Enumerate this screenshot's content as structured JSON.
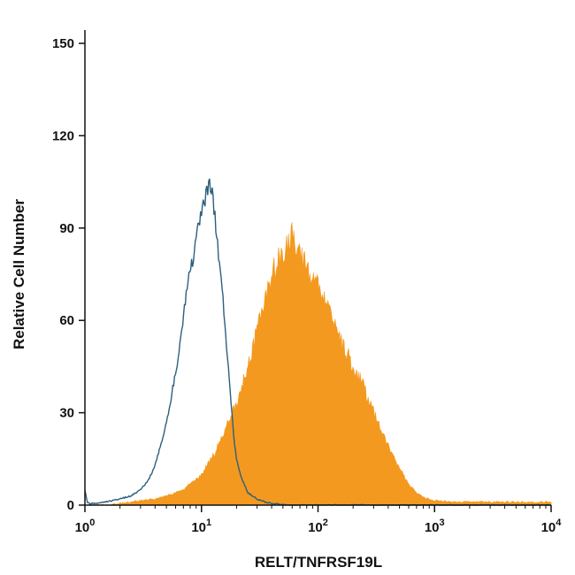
{
  "chart_data": {
    "type": "area",
    "title": "",
    "xlabel": "RELT/TNFRSF19L",
    "ylabel": "Relative Cell Number",
    "x_scale": "log",
    "xlim": [
      1,
      10000
    ],
    "ylim": [
      0,
      150
    ],
    "grid": false,
    "x_ticks": [
      {
        "value": 1,
        "base": "10",
        "exp": "0"
      },
      {
        "value": 10,
        "base": "10",
        "exp": "1"
      },
      {
        "value": 100,
        "base": "10",
        "exp": "2"
      },
      {
        "value": 1000,
        "base": "10",
        "exp": "3"
      },
      {
        "value": 10000,
        "base": "10",
        "exp": "4"
      }
    ],
    "y_ticks": [
      {
        "value": 0,
        "label": "0"
      },
      {
        "value": 30,
        "label": "30"
      },
      {
        "value": 60,
        "label": "60"
      },
      {
        "value": 90,
        "label": "90"
      },
      {
        "value": 120,
        "label": "120"
      },
      {
        "value": 150,
        "label": "150"
      }
    ],
    "series": [
      {
        "style": "filled",
        "color": "#f4991f",
        "x": [
          1,
          1.6,
          2,
          2.5,
          3,
          4,
          5,
          7,
          10,
          13,
          16,
          20,
          25,
          30,
          35,
          40,
          45,
          50,
          55,
          60,
          70,
          80,
          90,
          100,
          120,
          150,
          200,
          250,
          300,
          350,
          400,
          500,
          600,
          700,
          800,
          1000,
          1500,
          3000,
          10000
        ],
        "y": [
          0,
          0,
          0.5,
          1,
          1.5,
          2,
          3,
          5,
          10,
          17,
          25,
          33,
          45,
          57,
          68,
          73,
          80,
          83,
          86,
          87,
          82,
          77,
          75,
          72,
          68,
          55,
          45,
          38,
          30,
          25,
          19,
          12,
          7,
          4,
          2.5,
          1.5,
          1,
          1,
          1
        ]
      },
      {
        "style": "outline",
        "color": "#2d5f7e",
        "x": [
          1,
          1.05,
          1.1,
          1.5,
          2,
          2.5,
          3,
          3.5,
          4,
          4.5,
          5,
          5.5,
          6,
          6.5,
          7,
          7.5,
          8,
          8.5,
          9,
          9.5,
          10,
          10.5,
          11,
          11.5,
          12,
          12.5,
          13,
          13.5,
          14,
          15,
          16,
          17,
          18,
          19,
          20,
          22,
          25,
          30,
          35,
          40,
          60,
          100,
          10000
        ],
        "y": [
          5,
          1,
          0.5,
          1,
          2,
          3,
          5,
          8,
          13,
          20,
          27,
          35,
          43,
          52,
          62,
          70,
          76,
          80,
          85,
          92,
          95,
          97,
          100,
          103,
          104,
          100,
          95,
          88,
          80,
          70,
          58,
          45,
          32,
          22,
          15,
          9,
          4,
          2,
          1,
          0.5,
          0,
          0,
          0
        ]
      }
    ]
  }
}
